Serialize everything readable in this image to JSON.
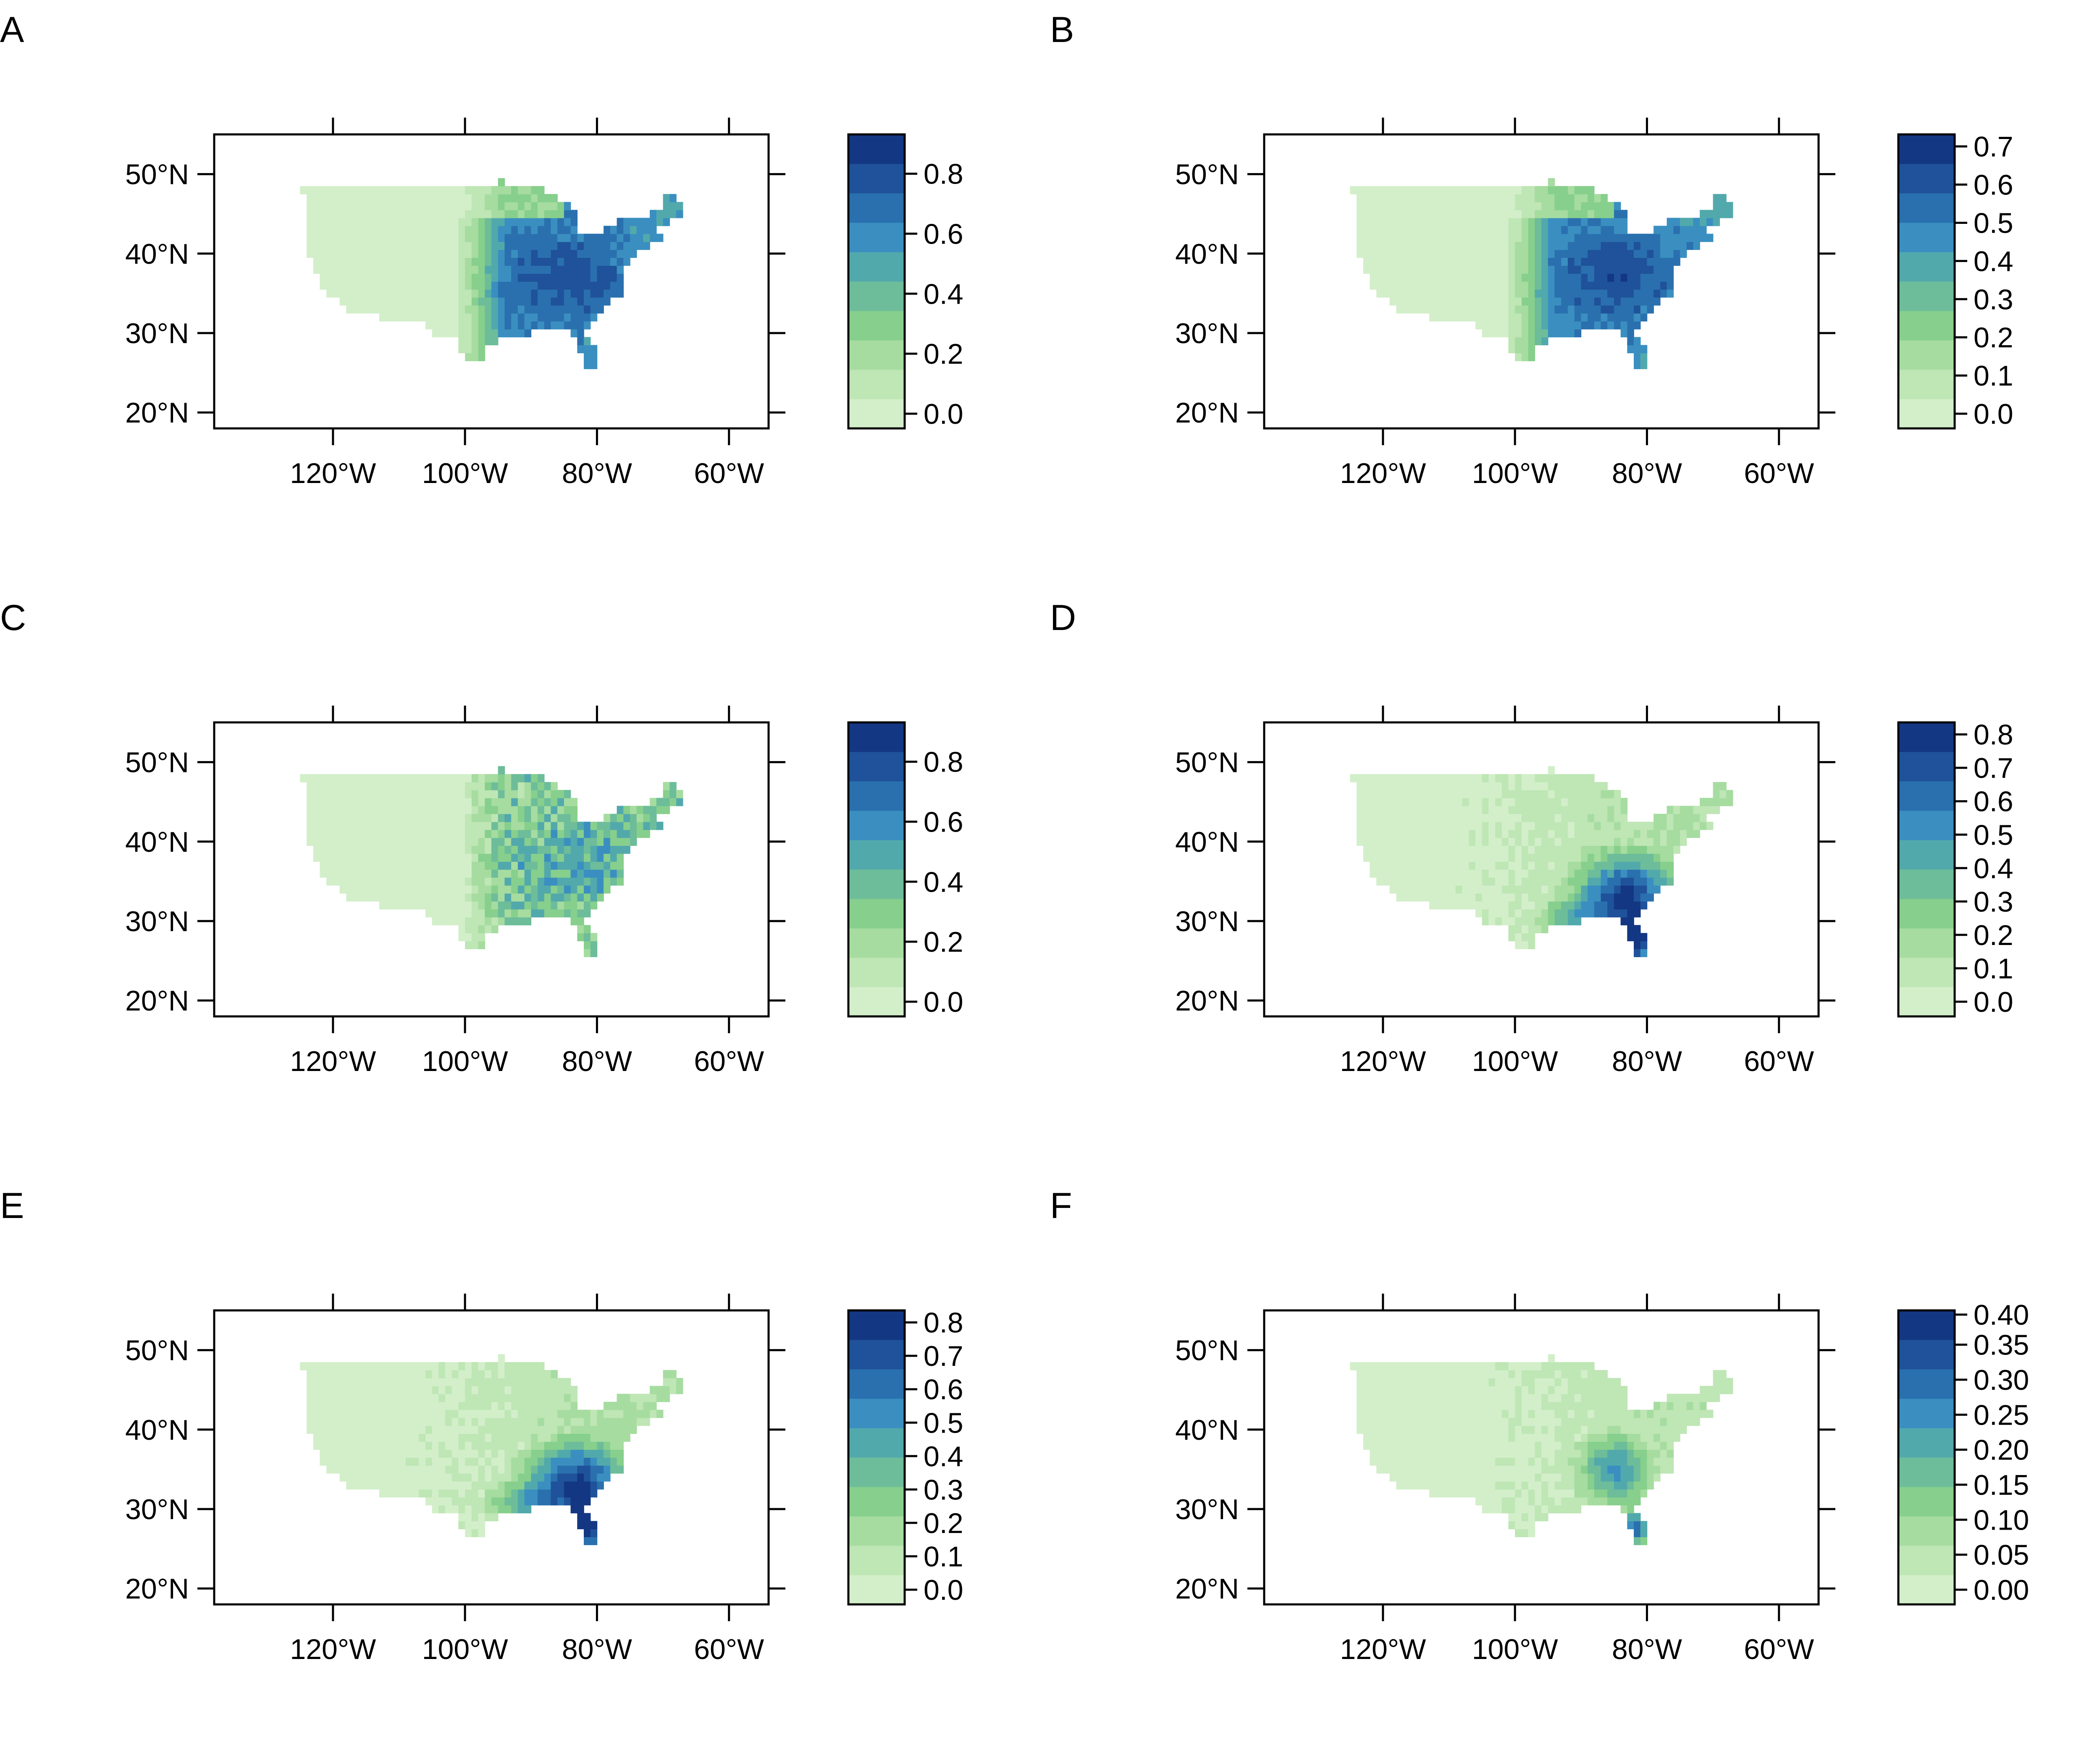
{
  "colors": {
    "palette": [
      "#d3efca",
      "#bfe6b5",
      "#a6dca0",
      "#87cf8c",
      "#6dbd9a",
      "#52a9ac",
      "#3a8fc0",
      "#2a70ae",
      "#1f529a",
      "#133783"
    ],
    "background": "#ffffff",
    "frame": "#000000"
  },
  "axes": {
    "longitude_ticks": [
      "120°W",
      "100°W",
      "80°W",
      "60°W"
    ],
    "latitude_ticks": [
      "20°N",
      "30°N",
      "40°N",
      "50°N"
    ]
  },
  "panels": [
    {
      "label": "A",
      "legend_ticks": [
        "0.0",
        "0.2",
        "0.4",
        "0.6",
        "0.8"
      ],
      "legend_range": [
        0,
        0.98
      ],
      "pattern": "east-dominant"
    },
    {
      "label": "B",
      "legend_ticks": [
        "0.0",
        "0.1",
        "0.2",
        "0.3",
        "0.4",
        "0.5",
        "0.6",
        "0.7"
      ],
      "legend_range": [
        0,
        0.77
      ],
      "pattern": "east-dominant"
    },
    {
      "label": "C",
      "legend_ticks": [
        "0.0",
        "0.2",
        "0.4",
        "0.6",
        "0.8"
      ],
      "legend_range": [
        0,
        0.98
      ],
      "pattern": "east-speckled"
    },
    {
      "label": "D",
      "legend_ticks": [
        "0.0",
        "0.1",
        "0.2",
        "0.3",
        "0.4",
        "0.5",
        "0.6",
        "0.7",
        "0.8"
      ],
      "legend_range": [
        0,
        0.88
      ],
      "pattern": "southeast-dominant"
    },
    {
      "label": "E",
      "legend_ticks": [
        "0.0",
        "0.1",
        "0.2",
        "0.3",
        "0.4",
        "0.5",
        "0.6",
        "0.7",
        "0.8"
      ],
      "legend_range": [
        0,
        0.88
      ],
      "pattern": "southeast-dominant"
    },
    {
      "label": "F",
      "legend_ticks": [
        "0.00",
        "0.05",
        "0.10",
        "0.15",
        "0.20",
        "0.25",
        "0.30",
        "0.35",
        "0.40"
      ],
      "legend_range": [
        0,
        0.42
      ],
      "pattern": "southeast-moderate"
    }
  ]
}
